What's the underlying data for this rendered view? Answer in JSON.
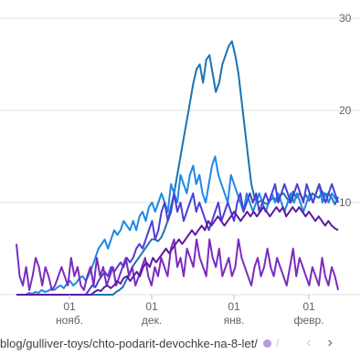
{
  "chart_data": {
    "type": "line",
    "y_ticks": [
      "30",
      "20",
      "10"
    ],
    "y_values": [
      30,
      20,
      10
    ],
    "ylim": [
      0,
      30
    ],
    "x_ticks": [
      {
        "day": "01",
        "month": "нояб."
      },
      {
        "day": "01",
        "month": "дек."
      },
      {
        "day": "01",
        "month": "янв."
      },
      {
        "day": "01",
        "month": "февр."
      }
    ],
    "grid": true,
    "series": [
      {
        "color": "#1a73b3",
        "values": [
          0,
          0,
          0,
          0,
          0,
          0,
          0,
          0,
          0,
          0,
          0,
          0,
          0,
          0,
          0,
          0,
          0,
          0,
          0,
          0,
          0,
          0,
          0,
          0,
          0,
          0,
          0,
          0,
          0,
          0,
          0,
          0.3,
          0.5,
          0.8,
          1.5,
          2.2,
          3,
          3.5,
          4,
          4.5,
          5,
          5.5,
          6,
          6,
          5.8,
          6.2,
          7,
          8,
          9.5,
          11,
          13,
          15,
          17,
          19,
          21,
          23,
          24.5,
          25,
          23,
          25.5,
          26,
          24,
          22,
          23,
          25,
          26,
          27,
          27.5,
          26,
          24,
          21,
          18,
          15,
          12,
          10.5,
          10,
          10.2,
          10,
          9.8,
          10.3,
          10.5,
          10.2,
          10.8,
          11,
          10.5,
          10,
          11.2,
          10.5,
          11,
          10.4,
          10.8,
          10.2,
          11,
          10.7,
          10.5,
          11.2,
          10.8,
          11,
          10.5,
          9.8,
          10.6
        ]
      },
      {
        "color": "#1e88e5",
        "values": [
          0,
          0,
          0,
          0,
          0.2,
          0.1,
          0.3,
          0.2,
          0.5,
          0.3,
          0.4,
          0.6,
          0.5,
          0.8,
          1,
          0.7,
          1.2,
          1.5,
          1,
          1.3,
          1.8,
          2,
          1.5,
          2.2,
          3,
          4,
          5,
          5.5,
          6,
          5,
          6,
          7,
          6.5,
          7,
          8,
          7.5,
          7,
          8,
          7,
          8.5,
          9,
          8,
          9.5,
          10,
          9,
          10,
          11,
          10,
          9,
          12,
          11,
          10,
          13,
          12,
          11,
          13,
          14,
          12,
          13,
          11,
          10,
          12,
          14,
          15,
          13,
          12,
          11,
          10,
          13,
          12,
          11,
          10,
          9,
          11,
          10,
          9,
          10,
          11,
          10,
          9,
          10,
          11,
          10,
          11,
          10,
          9,
          10,
          11,
          10,
          11,
          10,
          9,
          10,
          11,
          10,
          11,
          12,
          10,
          11,
          10,
          11,
          10.5,
          10
        ]
      },
      {
        "color": "#4a3fd6",
        "values": [
          0,
          0,
          0,
          0,
          0,
          0,
          0,
          0,
          0,
          0,
          0,
          0,
          0,
          0,
          0,
          0,
          0,
          0,
          0,
          0,
          0,
          0,
          0,
          0.5,
          1,
          0.8,
          1.5,
          2,
          2.5,
          2,
          3,
          2.5,
          3,
          3.5,
          3,
          4,
          3.5,
          4,
          5,
          5.5,
          5,
          6,
          7,
          8,
          6,
          7,
          9,
          10,
          8,
          9,
          11,
          9,
          10,
          8,
          9,
          10,
          11,
          9,
          10,
          9,
          8,
          7,
          8,
          9,
          10,
          8,
          9,
          10,
          9,
          8,
          10,
          11,
          9,
          10,
          11,
          10,
          11,
          9,
          10,
          11,
          10,
          11,
          12,
          10,
          11,
          12,
          11,
          10,
          11,
          12,
          11,
          10,
          12,
          11,
          10,
          11,
          12,
          11,
          10,
          11,
          12,
          11,
          10
        ]
      },
      {
        "color": "#7b2cbf",
        "values": [
          5.5,
          2,
          1,
          3,
          0.5,
          2,
          4,
          3,
          1,
          3,
          2,
          0.5,
          1,
          2,
          3,
          2,
          1,
          4,
          2,
          3,
          1,
          0.5,
          2,
          3,
          1,
          4,
          2,
          3,
          1,
          2,
          3,
          1,
          2,
          3,
          4,
          2,
          3,
          1,
          2,
          3,
          4,
          2,
          1,
          3,
          2,
          4,
          3,
          2,
          5,
          6,
          3,
          4,
          2,
          5,
          4,
          3,
          6,
          4,
          3,
          2,
          6,
          4,
          3,
          5,
          2,
          3,
          4,
          2,
          3,
          6,
          4,
          3,
          2,
          1,
          3,
          4,
          2,
          3,
          5,
          3,
          2,
          4,
          3,
          2,
          1,
          3,
          5,
          2,
          4,
          3,
          2,
          1,
          3,
          2,
          1,
          4,
          2,
          1,
          3,
          2,
          0.5
        ]
      },
      {
        "color": "#5c1aa0",
        "values": [
          0,
          0,
          0,
          0,
          0,
          0,
          0,
          0,
          0,
          0,
          0,
          0,
          0,
          0,
          0,
          0,
          0,
          0,
          0,
          0,
          0,
          0,
          0,
          0,
          0.3,
          0.5,
          0.4,
          0.8,
          1,
          0.7,
          1,
          1.5,
          1.2,
          1.8,
          2,
          1.5,
          2,
          2.5,
          2,
          3,
          3.5,
          3,
          4,
          3.5,
          4,
          4.5,
          5,
          4.5,
          5,
          5.5,
          6,
          5.5,
          6,
          6.5,
          7,
          6.5,
          7,
          7.5,
          7,
          8,
          7.5,
          8,
          8.5,
          8,
          7.5,
          8,
          8.5,
          9,
          8.5,
          8,
          8.5,
          9,
          8.5,
          9,
          8.5,
          9,
          9.5,
          9,
          8.5,
          9,
          9.5,
          9,
          9.5,
          8.5,
          9,
          9.5,
          9,
          9.5,
          9,
          8.5,
          9,
          8.5,
          8,
          8.5,
          8,
          7.5,
          8,
          7.5,
          7.2,
          7
        ]
      }
    ]
  },
  "footer": {
    "url": "blog/gulliver-toys/chto-podarit-devochke-na-8-let/",
    "sep": "/",
    "chevron_left": "‹",
    "chevron_right": "›"
  }
}
